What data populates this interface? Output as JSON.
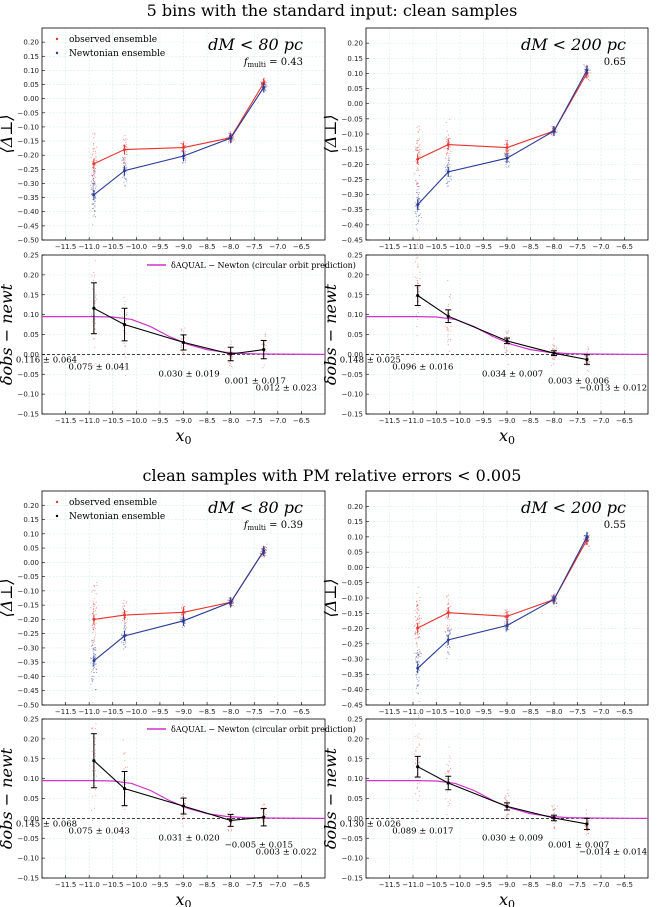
{
  "figure": {
    "section_titles": [
      "5 bins with the standard input: clean samples",
      "clean samples with PM relative errors < 0.005"
    ],
    "x_label": "x0",
    "x_label_sub": "0",
    "top_ylabel": "⟨Δ⊥⟩",
    "bottom_ylabel": "δobs − newt",
    "legend_observed": "observed ensemble",
    "legend_newtonian": "Newtonian ensemble",
    "legend_prediction": "δAQUAL − Newton (circular orbit prediction)",
    "colors": {
      "observed": "#e8332e",
      "newtonian": "#283a96",
      "delta": "#000000",
      "prediction": "#cc33cc",
      "grid": "#d7ecec"
    }
  },
  "chart_data": [
    {
      "panel": "top-left",
      "type": "line",
      "section": 0,
      "kind": "ensemble",
      "condition": "dM < 80 pc",
      "f_multi": "0.43",
      "x": [
        -10.9,
        -10.25,
        -9.0,
        -8.0,
        -7.3
      ],
      "series": [
        {
          "name": "observed ensemble",
          "values": [
            -0.23,
            -0.18,
            -0.173,
            -0.138,
            0.055
          ]
        },
        {
          "name": "Newtonian ensemble",
          "values": [
            -0.34,
            -0.255,
            -0.203,
            -0.14,
            0.04
          ]
        }
      ],
      "xlim": [
        -12.0,
        -6.0
      ],
      "ylim": [
        -0.5,
        0.25
      ],
      "xticks": [
        -11.5,
        -11.0,
        -10.5,
        -10.0,
        -9.5,
        -9.0,
        -8.5,
        -8.0,
        -7.5,
        -7.0,
        -6.5
      ],
      "yticks": [
        -0.5,
        -0.45,
        -0.4,
        -0.35,
        -0.3,
        -0.25,
        -0.2,
        -0.15,
        -0.1,
        -0.05,
        0.0,
        0.05,
        0.1,
        0.15,
        0.2
      ],
      "legend": true
    },
    {
      "panel": "top-right",
      "type": "line",
      "section": 0,
      "kind": "ensemble",
      "condition": "dM < 200 pc",
      "f_multi": "0.65",
      "x": [
        -10.9,
        -10.25,
        -9.0,
        -8.0,
        -7.3
      ],
      "series": [
        {
          "name": "observed ensemble",
          "values": [
            -0.183,
            -0.135,
            -0.145,
            -0.09,
            0.1
          ]
        },
        {
          "name": "Newtonian ensemble",
          "values": [
            -0.333,
            -0.225,
            -0.18,
            -0.09,
            0.11
          ]
        }
      ],
      "xlim": [
        -12.0,
        -6.0
      ],
      "ylim": [
        -0.45,
        0.25
      ],
      "xticks": [
        -11.5,
        -11.0,
        -10.5,
        -10.0,
        -9.5,
        -9.0,
        -8.5,
        -8.0,
        -7.5,
        -7.0,
        -6.5
      ],
      "yticks": [
        -0.45,
        -0.4,
        -0.35,
        -0.3,
        -0.25,
        -0.2,
        -0.15,
        -0.1,
        -0.05,
        0.0,
        0.05,
        0.1,
        0.15,
        0.2
      ],
      "legend": false
    },
    {
      "panel": "second-left",
      "type": "line",
      "section": 0,
      "kind": "delta",
      "x": [
        -10.9,
        -10.25,
        -9.0,
        -8.0,
        -7.3
      ],
      "values": [
        0.116,
        0.075,
        0.03,
        0.001,
        0.012
      ],
      "errors": [
        0.064,
        0.041,
        0.019,
        0.017,
        0.023
      ],
      "labels": [
        "0.116 ± 0.064",
        "0.075 ± 0.041",
        "0.030 ± 0.019",
        "0.001 ± 0.017",
        "0.012 ± 0.023"
      ],
      "prediction": {
        "x": [
          -12.0,
          -10.9,
          -10.5,
          -10.1,
          -9.7,
          -9.3,
          -8.9,
          -8.5,
          -8.1,
          -7.7,
          -7.3,
          -6.0
        ],
        "y": [
          0.095,
          0.095,
          0.094,
          0.088,
          0.07,
          0.045,
          0.025,
          0.012,
          0.005,
          0.002,
          0.001,
          0.0
        ]
      },
      "xlim": [
        -12.0,
        -6.0
      ],
      "ylim": [
        -0.15,
        0.25
      ],
      "xticks": [
        -11.5,
        -11.0,
        -10.5,
        -10.0,
        -9.5,
        -9.0,
        -8.5,
        -8.0,
        -7.5,
        -7.0,
        -6.5
      ],
      "yticks": [
        -0.15,
        -0.1,
        -0.05,
        0.0,
        0.05,
        0.1,
        0.15,
        0.2,
        0.25
      ],
      "legend": true
    },
    {
      "panel": "second-right",
      "type": "line",
      "section": 0,
      "kind": "delta",
      "x": [
        -10.9,
        -10.25,
        -9.0,
        -8.0,
        -7.3
      ],
      "values": [
        0.148,
        0.096,
        0.034,
        0.003,
        -0.013
      ],
      "errors": [
        0.025,
        0.016,
        0.007,
        0.006,
        0.012
      ],
      "labels": [
        "0.148 ± 0.025",
        "0.096 ± 0.016",
        "0.034 ± 0.007",
        "0.003 ± 0.006",
        "−0.013 ± 0.012"
      ],
      "prediction": {
        "x": [
          -12.0,
          -10.9,
          -10.5,
          -10.1,
          -9.7,
          -9.3,
          -8.9,
          -8.5,
          -8.1,
          -7.7,
          -7.3,
          -6.0
        ],
        "y": [
          0.095,
          0.095,
          0.094,
          0.088,
          0.07,
          0.045,
          0.025,
          0.012,
          0.005,
          0.002,
          0.001,
          0.0
        ]
      },
      "xlim": [
        -12.0,
        -6.0
      ],
      "ylim": [
        -0.15,
        0.25
      ],
      "xticks": [
        -11.5,
        -11.0,
        -10.5,
        -10.0,
        -9.5,
        -9.0,
        -8.5,
        -8.0,
        -7.5,
        -7.0,
        -6.5
      ],
      "yticks": [
        -0.15,
        -0.1,
        -0.05,
        0.0,
        0.05,
        0.1,
        0.15,
        0.2,
        0.25
      ],
      "legend": false
    },
    {
      "panel": "third-left",
      "type": "line",
      "section": 1,
      "kind": "ensemble",
      "condition": "dM < 80 pc",
      "f_multi": "0.39",
      "x": [
        -10.9,
        -10.25,
        -9.0,
        -8.0,
        -7.3
      ],
      "series": [
        {
          "name": "observed ensemble",
          "values": [
            -0.2,
            -0.185,
            -0.175,
            -0.14,
            0.04
          ]
        },
        {
          "name": "Newtonian ensemble",
          "values": [
            -0.345,
            -0.258,
            -0.205,
            -0.14,
            0.04
          ]
        }
      ],
      "xlim": [
        -12.0,
        -6.0
      ],
      "ylim": [
        -0.5,
        0.25
      ],
      "xticks": [
        -11.5,
        -11.0,
        -10.5,
        -10.0,
        -9.5,
        -9.0,
        -8.5,
        -8.0,
        -7.5,
        -7.0,
        -6.5
      ],
      "yticks": [
        -0.5,
        -0.45,
        -0.4,
        -0.35,
        -0.3,
        -0.25,
        -0.2,
        -0.15,
        -0.1,
        -0.05,
        0.0,
        0.05,
        0.1,
        0.15,
        0.2
      ],
      "legend": true
    },
    {
      "panel": "third-right",
      "type": "line",
      "section": 1,
      "kind": "ensemble",
      "condition": "dM < 200 pc",
      "f_multi": "0.55",
      "x": [
        -10.9,
        -10.25,
        -9.0,
        -8.0,
        -7.3
      ],
      "series": [
        {
          "name": "observed ensemble",
          "values": [
            -0.198,
            -0.148,
            -0.16,
            -0.105,
            0.09
          ]
        },
        {
          "name": "Newtonian ensemble",
          "values": [
            -0.33,
            -0.237,
            -0.19,
            -0.105,
            0.1
          ]
        }
      ],
      "xlim": [
        -12.0,
        -6.0
      ],
      "ylim": [
        -0.45,
        0.25
      ],
      "xticks": [
        -11.5,
        -11.0,
        -10.5,
        -10.0,
        -9.5,
        -9.0,
        -8.5,
        -8.0,
        -7.5,
        -7.0,
        -6.5
      ],
      "yticks": [
        -0.45,
        -0.4,
        -0.35,
        -0.3,
        -0.25,
        -0.2,
        -0.15,
        -0.1,
        -0.05,
        0.0,
        0.05,
        0.1,
        0.15,
        0.2
      ],
      "legend": false
    },
    {
      "panel": "fourth-left",
      "type": "line",
      "section": 1,
      "kind": "delta",
      "x": [
        -10.9,
        -10.25,
        -9.0,
        -8.0,
        -7.3
      ],
      "values": [
        0.145,
        0.075,
        0.031,
        -0.005,
        0.003
      ],
      "errors": [
        0.068,
        0.043,
        0.02,
        0.015,
        0.022
      ],
      "labels": [
        "0.145 ± 0.068",
        "0.075 ± 0.043",
        "0.031 ± 0.020",
        "−0.005 ± 0.015",
        "0.003 ± 0.022"
      ],
      "prediction": {
        "x": [
          -12.0,
          -10.9,
          -10.5,
          -10.1,
          -9.7,
          -9.3,
          -8.9,
          -8.5,
          -8.1,
          -7.7,
          -7.3,
          -6.0
        ],
        "y": [
          0.095,
          0.095,
          0.094,
          0.088,
          0.07,
          0.045,
          0.025,
          0.012,
          0.005,
          0.002,
          0.001,
          0.0
        ]
      },
      "xlim": [
        -12.0,
        -6.0
      ],
      "ylim": [
        -0.15,
        0.25
      ],
      "xticks": [
        -11.5,
        -11.0,
        -10.5,
        -10.0,
        -9.5,
        -9.0,
        -8.5,
        -8.0,
        -7.5,
        -7.0,
        -6.5
      ],
      "yticks": [
        -0.15,
        -0.1,
        -0.05,
        0.0,
        0.05,
        0.1,
        0.15,
        0.2,
        0.25
      ],
      "legend": true
    },
    {
      "panel": "fourth-right",
      "type": "line",
      "section": 1,
      "kind": "delta",
      "x": [
        -10.9,
        -10.25,
        -9.0,
        -8.0,
        -7.3
      ],
      "values": [
        0.13,
        0.089,
        0.03,
        0.001,
        -0.014
      ],
      "errors": [
        0.026,
        0.017,
        0.009,
        0.007,
        0.014
      ],
      "labels": [
        "0.130 ± 0.026",
        "0.089 ± 0.017",
        "0.030 ± 0.009",
        "0.001 ± 0.007",
        "−0.014 ± 0.014"
      ],
      "prediction": {
        "x": [
          -12.0,
          -10.9,
          -10.5,
          -10.1,
          -9.7,
          -9.3,
          -8.9,
          -8.5,
          -8.1,
          -7.7,
          -7.3,
          -6.0
        ],
        "y": [
          0.095,
          0.095,
          0.094,
          0.088,
          0.07,
          0.045,
          0.025,
          0.012,
          0.005,
          0.002,
          0.001,
          0.0
        ]
      },
      "xlim": [
        -12.0,
        -6.0
      ],
      "ylim": [
        -0.15,
        0.25
      ],
      "xticks": [
        -11.5,
        -11.0,
        -10.5,
        -10.0,
        -9.5,
        -9.0,
        -8.5,
        -8.0,
        -7.5,
        -7.0,
        -6.5
      ],
      "yticks": [
        -0.15,
        -0.1,
        -0.05,
        0.0,
        0.05,
        0.1,
        0.15,
        0.2,
        0.25
      ],
      "legend": false
    }
  ]
}
